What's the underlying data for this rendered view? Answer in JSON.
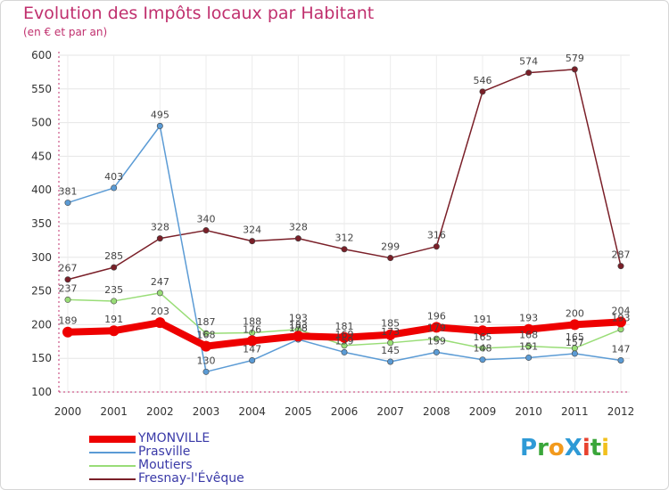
{
  "title": "Evolution des Impôts locaux par Habitant",
  "subtitle": "(en € et par an)",
  "brand": {
    "text": "ProXiti",
    "letters": [
      {
        "ch": "P",
        "color": "#2e9ad6"
      },
      {
        "ch": "r",
        "color": "#3aa63a"
      },
      {
        "ch": "o",
        "color": "#f29a1d"
      },
      {
        "ch": "X",
        "color": "#2e9ad6"
      },
      {
        "ch": "i",
        "color": "#e8412e"
      },
      {
        "ch": "t",
        "color": "#3aa63a"
      },
      {
        "ch": "i",
        "color": "#f2c01d"
      }
    ]
  },
  "chart_data": {
    "type": "line",
    "x": [
      "2000",
      "2001",
      "2002",
      "2003",
      "2004",
      "2005",
      "2006",
      "2007",
      "2008",
      "2009",
      "2010",
      "2011",
      "2012"
    ],
    "ylim": [
      100,
      600
    ],
    "yticks": [
      100,
      150,
      200,
      250,
      300,
      350,
      400,
      450,
      500,
      550,
      600
    ],
    "grid": true,
    "legend_position": "bottom-left",
    "series": [
      {
        "name": "Fresnay-l'Évêque",
        "color": "#7a1f28",
        "width": 1.5,
        "marker": 3.2,
        "values": [
          267,
          285,
          328,
          340,
          324,
          328,
          312,
          299,
          316,
          546,
          574,
          579,
          287
        ],
        "labels": [
          "267",
          "285",
          "328",
          "340",
          "324",
          "328",
          "312",
          "299",
          "316",
          "546",
          "574",
          "579",
          "287"
        ]
      },
      {
        "name": "Moutiers",
        "color": "#99dd77",
        "width": 1.5,
        "marker": 3.2,
        "values": [
          237,
          235,
          247,
          187,
          188,
          193,
          169,
          173,
          179,
          165,
          168,
          165,
          193
        ],
        "labels": [
          "237",
          "235",
          "247",
          "187",
          "188",
          "193",
          "169",
          "173",
          "179",
          "165",
          "168",
          "165",
          "193"
        ]
      },
      {
        "name": "Prasville",
        "color": "#5b9bd5",
        "width": 1.5,
        "marker": 3.2,
        "values": [
          381,
          403,
          495,
          130,
          147,
          178,
          159,
          145,
          159,
          148,
          151,
          157,
          147
        ],
        "labels": [
          "381",
          "403",
          "495",
          "130",
          "147",
          "178",
          "159",
          "145",
          "159",
          "148",
          "151",
          "157",
          "147"
        ]
      },
      {
        "name": "YMONVILLE",
        "color": "#ee0000",
        "width": 8,
        "marker": 6,
        "values": [
          189,
          191,
          203,
          168,
          176,
          183,
          181,
          185,
          196,
          191,
          193,
          200,
          204
        ],
        "labels": [
          "189",
          "191",
          "203",
          "168",
          "176",
          "183",
          "181",
          "185",
          "196",
          "191",
          "193",
          "200",
          "204"
        ]
      }
    ],
    "legend": [
      {
        "name": "YMONVILLE",
        "color": "#ee0000",
        "thickness": 8
      },
      {
        "name": "Prasville",
        "color": "#5b9bd5",
        "thickness": 2
      },
      {
        "name": "Moutiers",
        "color": "#99dd77",
        "thickness": 2
      },
      {
        "name": "Fresnay-l'Évêque",
        "color": "#7a1f28",
        "thickness": 2
      }
    ]
  }
}
